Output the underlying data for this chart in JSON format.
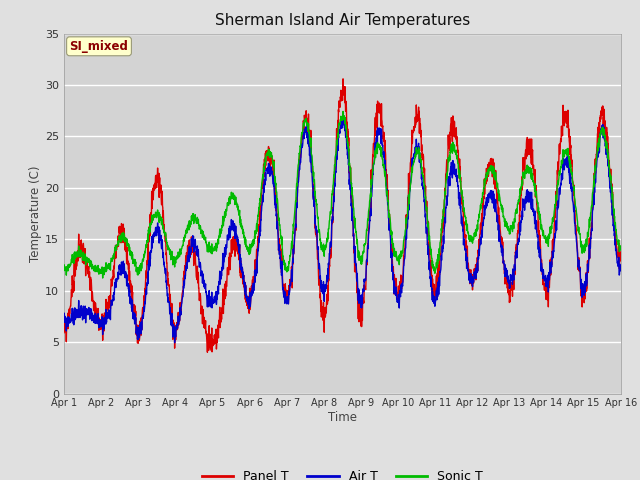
{
  "title": "Sherman Island Air Temperatures",
  "xlabel": "Time",
  "ylabel": "Temperature (C)",
  "ylim": [
    0,
    35
  ],
  "xlim_days": 15,
  "fig_bg_color": "#e0e0e0",
  "plot_bg_color": "#d3d3d3",
  "annotation_text": "SI_mixed",
  "annotation_color": "#8b0000",
  "annotation_bg": "#ffffcc",
  "tick_labels": [
    "Apr 1",
    "Apr 2",
    "Apr 3",
    "Apr 4",
    "Apr 5",
    "Apr 6",
    "Apr 7",
    "Apr 8",
    "Apr 9",
    "Apr 10",
    "Apr 11",
    "Apr 12",
    "Apr 13",
    "Apr 14",
    "Apr 15",
    "Apr 16"
  ],
  "line_colors": {
    "panel": "#dd0000",
    "air": "#0000cc",
    "sonic": "#00bb00"
  },
  "line_width": 1.0,
  "legend_labels": [
    "Panel T",
    "Air T",
    "Sonic T"
  ],
  "yticks": [
    0,
    5,
    10,
    15,
    20,
    25,
    30,
    35
  ]
}
